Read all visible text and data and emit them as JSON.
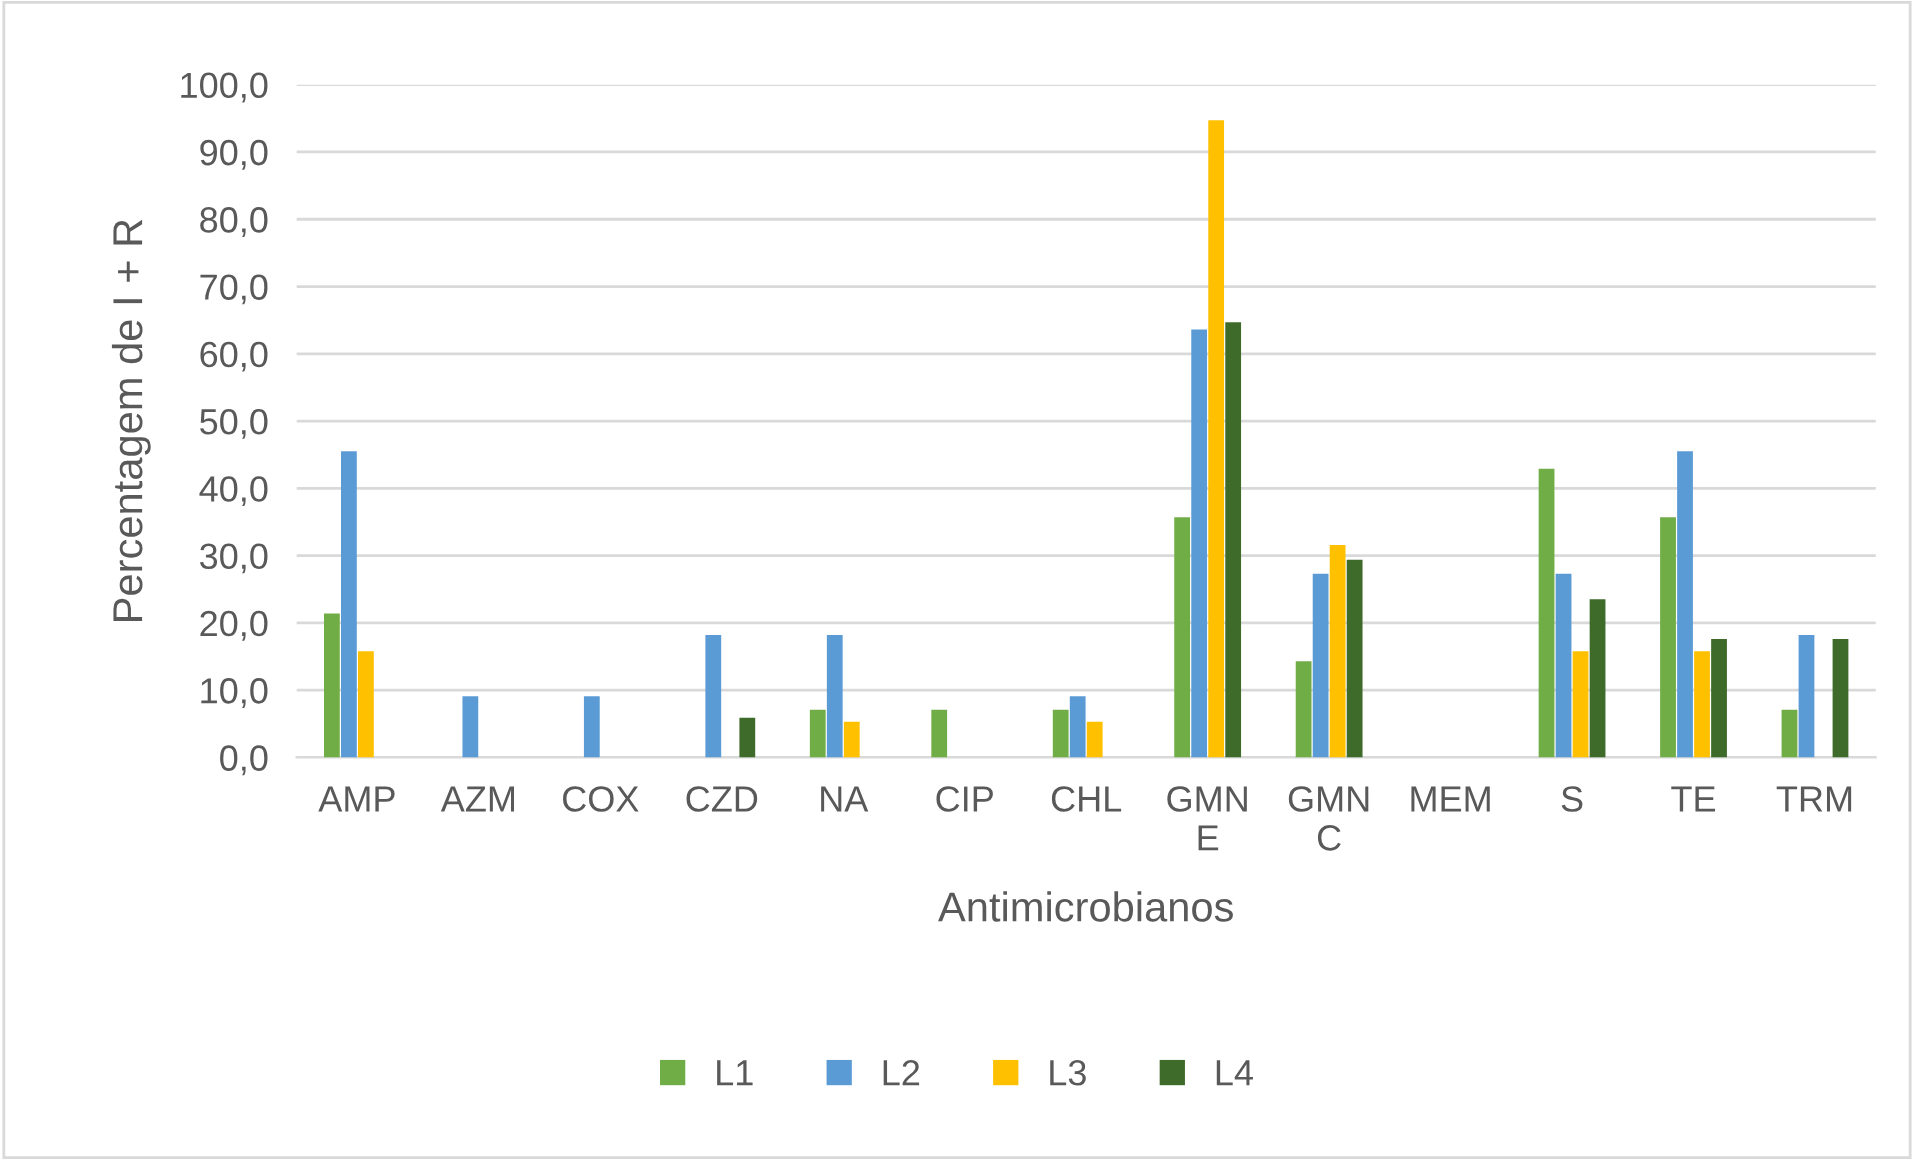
{
  "chart_data": {
    "type": "bar",
    "xlabel": "Antimicrobianos",
    "ylabel": "Percentagem de I + R",
    "categories": [
      "AMP",
      "AZM",
      "COX",
      "CZD",
      "NA",
      "CIP",
      "CHL",
      "GMNE",
      "GMNC",
      "MEM",
      "S",
      "TE",
      "TRM"
    ],
    "series": [
      {
        "name": "L1",
        "color": "#70ad47",
        "values": [
          21.4,
          null,
          null,
          null,
          7.1,
          7.1,
          7.1,
          35.7,
          14.3,
          null,
          42.9,
          35.7,
          7.1
        ]
      },
      {
        "name": "L2",
        "color": "#5b9bd5",
        "values": [
          45.5,
          9.1,
          9.1,
          18.2,
          18.2,
          null,
          9.1,
          63.6,
          27.3,
          null,
          27.3,
          45.5,
          18.2
        ]
      },
      {
        "name": "L3",
        "color": "#ffc000",
        "values": [
          15.8,
          null,
          null,
          null,
          5.3,
          null,
          5.3,
          94.7,
          31.6,
          null,
          15.8,
          15.8,
          null
        ]
      },
      {
        "name": "L4",
        "color": "#3e6b2a",
        "values": [
          null,
          null,
          null,
          5.9,
          null,
          null,
          null,
          64.7,
          29.4,
          null,
          23.5,
          17.6,
          17.6
        ]
      }
    ],
    "ylim": [
      0,
      100
    ],
    "yticks": [
      {
        "value": 0,
        "label": "0,0"
      },
      {
        "value": 10,
        "label": "10,0"
      },
      {
        "value": 20,
        "label": "20,0"
      },
      {
        "value": 30,
        "label": "30,0"
      },
      {
        "value": 40,
        "label": "40,0"
      },
      {
        "value": 50,
        "label": "50,0"
      },
      {
        "value": 60,
        "label": "60,0"
      },
      {
        "value": 70,
        "label": "70,0"
      },
      {
        "value": 80,
        "label": "80,0"
      },
      {
        "value": 90,
        "label": "90,0"
      },
      {
        "value": 100,
        "label": "100,0"
      }
    ],
    "grid": "y",
    "legend": "bottom"
  }
}
